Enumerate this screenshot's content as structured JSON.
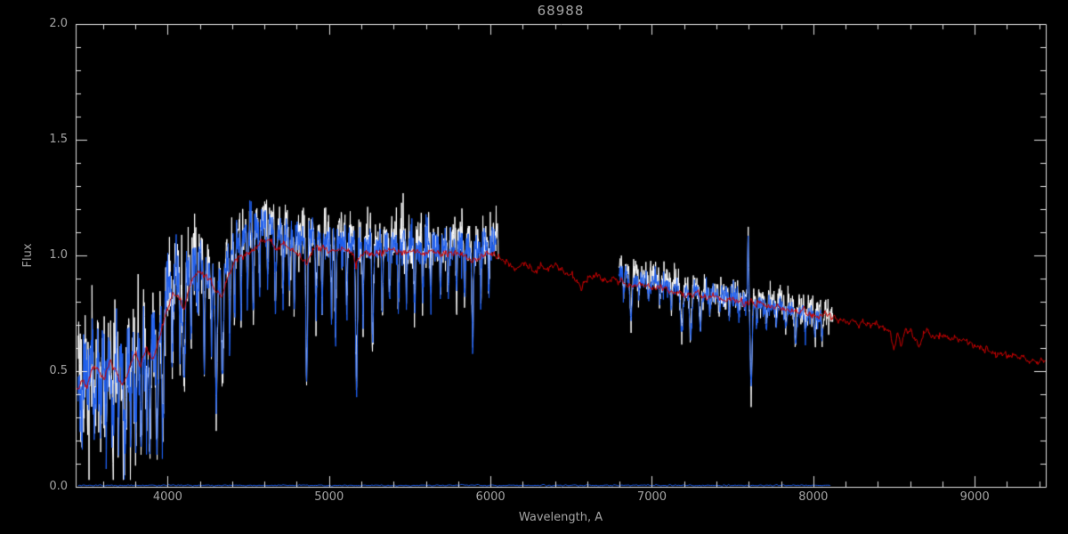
{
  "chart_data": {
    "type": "line",
    "title": "68988",
    "xlabel": "Wavelength, A",
    "ylabel": "Flux",
    "xlim": [
      3430,
      9440
    ],
    "ylim": [
      0.0,
      2.0
    ],
    "grid": false,
    "legend": "none",
    "x_ticks": [
      {
        "value": 4000,
        "label": "4000"
      },
      {
        "value": 5000,
        "label": "5000"
      },
      {
        "value": 6000,
        "label": "6000"
      },
      {
        "value": 7000,
        "label": "7000"
      },
      {
        "value": 8000,
        "label": "8000"
      },
      {
        "value": 9000,
        "label": "9000"
      }
    ],
    "y_ticks": [
      {
        "value": 0.0,
        "label": "0.0"
      },
      {
        "value": 0.5,
        "label": "0.5"
      },
      {
        "value": 1.0,
        "label": "1.0"
      },
      {
        "value": 1.5,
        "label": "1.5"
      },
      {
        "value": 2.0,
        "label": "2.0"
      }
    ],
    "minor_tick_step_x": 200,
    "minor_tick_step_y": 0.1,
    "colors": {
      "background": "#000000",
      "axis": "#e4e4e4",
      "text": "#a4a4a4",
      "model": "#cc0000",
      "observed": "#1f5fee",
      "observed_raw": "#ffffff"
    },
    "model": {
      "name": "model-spectrum",
      "wiggle_amp": 0.007,
      "wiggle_rho": 0.55,
      "seed": 7,
      "x": [
        3435,
        3470,
        3500,
        3530,
        3560,
        3600,
        3640,
        3680,
        3720,
        3750,
        3790,
        3830,
        3870,
        3910,
        3950,
        3990,
        4030,
        4070,
        4101,
        4140,
        4180,
        4220,
        4260,
        4300,
        4340,
        4380,
        4420,
        4470,
        4520,
        4570,
        4620,
        4670,
        4720,
        4770,
        4820,
        4861,
        4900,
        4950,
        5000,
        5060,
        5120,
        5170,
        5220,
        5270,
        5330,
        5390,
        5450,
        5510,
        5570,
        5630,
        5690,
        5750,
        5810,
        5890,
        5950,
        6010,
        6060,
        6110,
        6160,
        6210,
        6260,
        6310,
        6360,
        6410,
        6460,
        6510,
        6563,
        6610,
        6660,
        6710,
        6760,
        6810,
        6860,
        6910,
        6960,
        7010,
        7060,
        7110,
        7160,
        7210,
        7260,
        7310,
        7360,
        7410,
        7460,
        7510,
        7560,
        7610,
        7660,
        7710,
        7760,
        7810,
        7860,
        7910,
        7960,
        8010,
        8060,
        8110,
        8160,
        8210,
        8260,
        8310,
        8360,
        8410,
        8450,
        8480,
        8500,
        8520,
        8545,
        8570,
        8600,
        8630,
        8660,
        8690,
        8720,
        8760,
        8800,
        8850,
        8900,
        8950,
        9000,
        9050,
        9100,
        9150,
        9200,
        9250,
        9300,
        9350,
        9400,
        9440
      ],
      "y": [
        0.4,
        0.46,
        0.43,
        0.5,
        0.52,
        0.46,
        0.54,
        0.5,
        0.44,
        0.48,
        0.58,
        0.52,
        0.6,
        0.55,
        0.66,
        0.74,
        0.84,
        0.82,
        0.76,
        0.88,
        0.93,
        0.92,
        0.9,
        0.85,
        0.83,
        0.92,
        0.98,
        1.0,
        1.03,
        1.05,
        1.06,
        1.04,
        1.05,
        1.03,
        1.01,
        0.96,
        1.03,
        1.04,
        1.03,
        1.03,
        1.02,
        0.97,
        1.02,
        1.0,
        1.02,
        1.03,
        1.02,
        1.02,
        1.01,
        1.02,
        1.01,
        1.01,
        1.01,
        0.97,
        1.0,
        1.01,
        0.99,
        0.96,
        0.94,
        0.96,
        0.93,
        0.95,
        0.94,
        0.95,
        0.93,
        0.92,
        0.86,
        0.91,
        0.91,
        0.9,
        0.89,
        0.89,
        0.87,
        0.88,
        0.87,
        0.86,
        0.86,
        0.85,
        0.84,
        0.83,
        0.84,
        0.83,
        0.82,
        0.82,
        0.81,
        0.81,
        0.8,
        0.79,
        0.79,
        0.78,
        0.78,
        0.77,
        0.76,
        0.76,
        0.75,
        0.74,
        0.74,
        0.73,
        0.72,
        0.72,
        0.71,
        0.7,
        0.7,
        0.69,
        0.68,
        0.66,
        0.59,
        0.67,
        0.6,
        0.69,
        0.67,
        0.65,
        0.61,
        0.67,
        0.66,
        0.65,
        0.65,
        0.64,
        0.63,
        0.62,
        0.61,
        0.6,
        0.59,
        0.58,
        0.57,
        0.57,
        0.56,
        0.55,
        0.54,
        0.53
      ]
    },
    "observed": {
      "raw_noise_scale": 1.5,
      "raw_offset": 0.018,
      "seed_raw": 3,
      "seed_smooth": 11,
      "step": 2,
      "segments": [
        {
          "range_raw": [
            3445,
            6050
          ],
          "range_smooth": [
            3445,
            6035
          ],
          "noise_base": 0.04,
          "noise_blue_extra": 0.075,
          "noise_blue_knee": 4350,
          "continuum": {
            "x": [
              3445,
              3500,
              3550,
              3600,
              3650,
              3700,
              3750,
              3800,
              3850,
              3900,
              3950,
              4000,
              4050,
              4100,
              4150,
              4200,
              4250,
              4300,
              4350,
              4400,
              4450,
              4500,
              4550,
              4600,
              4650,
              4700,
              4750,
              4800,
              4850,
              4900,
              4950,
              5000,
              5100,
              5200,
              5300,
              5400,
              5500,
              5600,
              5700,
              5800,
              5900,
              6000,
              6050
            ],
            "y": [
              0.5,
              0.55,
              0.62,
              0.55,
              0.6,
              0.56,
              0.52,
              0.62,
              0.66,
              0.62,
              0.7,
              0.88,
              0.92,
              0.88,
              0.95,
              0.97,
              0.94,
              0.9,
              0.95,
              1.04,
              1.08,
              1.12,
              1.13,
              1.15,
              1.12,
              1.1,
              1.09,
              1.08,
              1.07,
              1.08,
              1.07,
              1.06,
              1.05,
              1.06,
              1.04,
              1.05,
              1.04,
              1.04,
              1.03,
              1.04,
              1.03,
              1.05,
              1.05
            ]
          },
          "lines": [
            [
              3470,
              0.45,
              6
            ],
            [
              3510,
              0.4,
              5
            ],
            [
              3550,
              0.5,
              7
            ],
            [
              3585,
              0.45,
              5
            ],
            [
              3620,
              0.5,
              6
            ],
            [
              3660,
              0.55,
              7
            ],
            [
              3695,
              0.45,
              5
            ],
            [
              3735,
              0.75,
              7
            ],
            [
              3770,
              0.5,
              5
            ],
            [
              3800,
              0.6,
              6
            ],
            [
              3835,
              0.68,
              6
            ],
            [
              3870,
              0.5,
              5
            ],
            [
              3890,
              0.62,
              5
            ],
            [
              3935,
              0.72,
              6
            ],
            [
              3970,
              0.72,
              6
            ],
            [
              4030,
              0.38,
              5
            ],
            [
              4077,
              0.35,
              4
            ],
            [
              4101,
              0.55,
              6
            ],
            [
              4145,
              0.32,
              4
            ],
            [
              4185,
              0.25,
              4
            ],
            [
              4227,
              0.45,
              4
            ],
            [
              4272,
              0.3,
              4
            ],
            [
              4300,
              0.6,
              6
            ],
            [
              4340,
              0.55,
              6
            ],
            [
              4385,
              0.42,
              4
            ],
            [
              4415,
              0.28,
              4
            ],
            [
              4455,
              0.3,
              4
            ],
            [
              4495,
              0.25,
              4
            ],
            [
              4530,
              0.33,
              4
            ],
            [
              4570,
              0.25,
              4
            ],
            [
              4620,
              0.22,
              4
            ],
            [
              4668,
              0.3,
              4
            ],
            [
              4715,
              0.25,
              4
            ],
            [
              4755,
              0.22,
              4
            ],
            [
              4785,
              0.28,
              4
            ],
            [
              4861,
              0.58,
              5
            ],
            [
              4920,
              0.33,
              4
            ],
            [
              4957,
              0.28,
              4
            ],
            [
              5015,
              0.3,
              4
            ],
            [
              5040,
              0.45,
              4
            ],
            [
              5110,
              0.28,
              4
            ],
            [
              5170,
              0.6,
              6
            ],
            [
              5210,
              0.3,
              4
            ],
            [
              5270,
              0.4,
              5
            ],
            [
              5330,
              0.28,
              4
            ],
            [
              5375,
              0.22,
              4
            ],
            [
              5430,
              0.25,
              4
            ],
            [
              5480,
              0.22,
              4
            ],
            [
              5530,
              0.28,
              4
            ],
            [
              5580,
              0.2,
              4
            ],
            [
              5630,
              0.22,
              4
            ],
            [
              5690,
              0.18,
              4
            ],
            [
              5740,
              0.2,
              4
            ],
            [
              5790,
              0.18,
              4
            ],
            [
              5840,
              0.2,
              4
            ],
            [
              5890,
              0.42,
              5
            ],
            [
              5940,
              0.18,
              4
            ],
            [
              5990,
              0.2,
              4
            ]
          ],
          "emission": []
        },
        {
          "range_raw": [
            6795,
            8122
          ],
          "range_smooth": [
            6795,
            8060
          ],
          "noise_base": 0.022,
          "noise_blue_extra": 0,
          "noise_blue_knee": 6795,
          "continuum": {
            "x": [
              6795,
              6900,
              7000,
              7100,
              7200,
              7300,
              7400,
              7500,
              7600,
              7700,
              7800,
              7900,
              8000,
              8060,
              8125
            ],
            "y": [
              0.93,
              0.9,
              0.89,
              0.87,
              0.85,
              0.84,
              0.83,
              0.82,
              0.8,
              0.79,
              0.78,
              0.76,
              0.74,
              0.73,
              0.72
            ]
          },
          "lines": [
            [
              6825,
              0.12,
              4
            ],
            [
              6870,
              0.22,
              6
            ],
            [
              6920,
              0.1,
              4
            ],
            [
              6980,
              0.12,
              4
            ],
            [
              7050,
              0.1,
              4
            ],
            [
              7120,
              0.12,
              4
            ],
            [
              7185,
              0.22,
              8
            ],
            [
              7240,
              0.22,
              8
            ],
            [
              7300,
              0.18,
              6
            ],
            [
              7360,
              0.12,
              4
            ],
            [
              7420,
              0.1,
              4
            ],
            [
              7480,
              0.12,
              4
            ],
            [
              7540,
              0.1,
              4
            ],
            [
              7615,
              0.45,
              6
            ],
            [
              7650,
              0.15,
              4
            ],
            [
              7710,
              0.12,
              4
            ],
            [
              7770,
              0.12,
              4
            ],
            [
              7830,
              0.12,
              4
            ],
            [
              7890,
              0.2,
              5
            ],
            [
              7950,
              0.13,
              4
            ],
            [
              8010,
              0.15,
              4
            ],
            [
              8055,
              0.14,
              4
            ]
          ],
          "emission": [
            [
              7596,
              0.28,
              3
            ]
          ]
        }
      ],
      "error_spectrum": {
        "range": [
          3445,
          8110
        ],
        "level": 0.006,
        "noise": 0.0015,
        "seed": 21
      }
    }
  }
}
